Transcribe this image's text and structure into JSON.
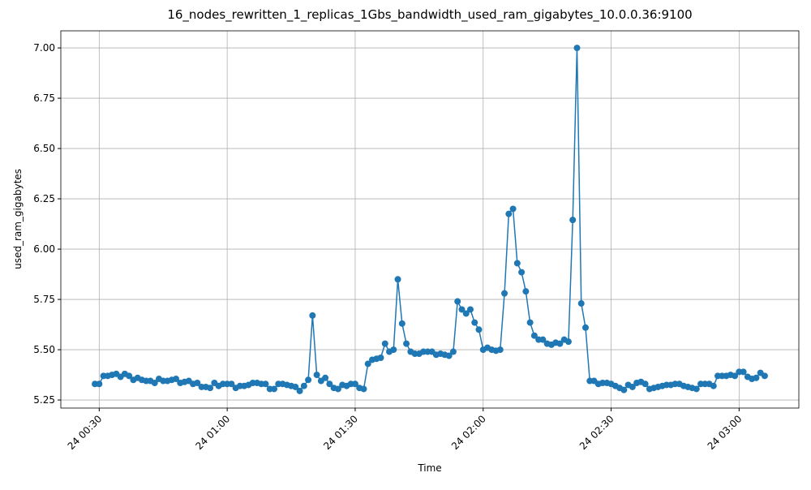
{
  "chart_data": {
    "type": "line",
    "title": "16_nodes_rewritten_1_replicas_1Gbs_bandwidth_used_ram_gigabytes_10.0.0.36:9100",
    "x_label": "Time",
    "y_label": "used_ram_gigabytes",
    "grid": true,
    "xlim": [
      "24 00:21",
      "24 03:14"
    ],
    "xticks": [
      "24 00:30",
      "24 01:00",
      "24 01:30",
      "24 02:00",
      "24 02:30",
      "24 03:00"
    ],
    "ylim": [
      5.21,
      7.085
    ],
    "yticks": [
      {
        "value": 5.25,
        "label": "5.25"
      },
      {
        "value": 5.5,
        "label": "5.50"
      },
      {
        "value": 5.75,
        "label": "5.75"
      },
      {
        "value": 6,
        "label": "6.00"
      },
      {
        "value": 6.25,
        "label": "6.25"
      },
      {
        "value": 6.5,
        "label": "6.50"
      },
      {
        "value": 6.75,
        "label": "6.75"
      },
      {
        "value": 7,
        "label": "7.00"
      }
    ],
    "x": [
      "24 00:29",
      "24 00:30",
      "24 00:31",
      "24 00:32",
      "24 00:33",
      "24 00:34",
      "24 00:35",
      "24 00:36",
      "24 00:37",
      "24 00:38",
      "24 00:39",
      "24 00:40",
      "24 00:41",
      "24 00:42",
      "24 00:43",
      "24 00:44",
      "24 00:45",
      "24 00:46",
      "24 00:47",
      "24 00:48",
      "24 00:49",
      "24 00:50",
      "24 00:51",
      "24 00:52",
      "24 00:53",
      "24 00:54",
      "24 00:55",
      "24 00:56",
      "24 00:57",
      "24 00:58",
      "24 00:59",
      "24 01:00",
      "24 01:01",
      "24 01:02",
      "24 01:03",
      "24 01:04",
      "24 01:05",
      "24 01:06",
      "24 01:07",
      "24 01:08",
      "24 01:09",
      "24 01:10",
      "24 01:11",
      "24 01:12",
      "24 01:13",
      "24 01:14",
      "24 01:15",
      "24 01:16",
      "24 01:17",
      "24 01:18",
      "24 01:19",
      "24 01:20",
      "24 01:21",
      "24 01:22",
      "24 01:23",
      "24 01:24",
      "24 01:25",
      "24 01:26",
      "24 01:27",
      "24 01:28",
      "24 01:29",
      "24 01:30",
      "24 01:31",
      "24 01:32",
      "24 01:33",
      "24 01:34",
      "24 01:35",
      "24 01:36",
      "24 01:37",
      "24 01:38",
      "24 01:39",
      "24 01:40",
      "24 01:41",
      "24 01:42",
      "24 01:43",
      "24 01:44",
      "24 01:45",
      "24 01:46",
      "24 01:47",
      "24 01:48",
      "24 01:49",
      "24 01:50",
      "24 01:51",
      "24 01:52",
      "24 01:53",
      "24 01:54",
      "24 01:55",
      "24 01:56",
      "24 01:57",
      "24 01:58",
      "24 01:59",
      "24 02:00",
      "24 02:01",
      "24 02:02",
      "24 02:03",
      "24 02:04",
      "24 02:05",
      "24 02:06",
      "24 02:07",
      "24 02:08",
      "24 02:09",
      "24 02:10",
      "24 02:11",
      "24 02:12",
      "24 02:13",
      "24 02:14",
      "24 02:15",
      "24 02:16",
      "24 02:17",
      "24 02:18",
      "24 02:19",
      "24 02:20",
      "24 02:21",
      "24 02:22",
      "24 02:23",
      "24 02:24",
      "24 02:25",
      "24 02:26",
      "24 02:27",
      "24 02:28",
      "24 02:29",
      "24 02:30",
      "24 02:31",
      "24 02:32",
      "24 02:33",
      "24 02:34",
      "24 02:35",
      "24 02:36",
      "24 02:37",
      "24 02:38",
      "24 02:39",
      "24 02:40",
      "24 02:41",
      "24 02:42",
      "24 02:43",
      "24 02:44",
      "24 02:45",
      "24 02:46",
      "24 02:47",
      "24 02:48",
      "24 02:49",
      "24 02:50",
      "24 02:51",
      "24 02:52",
      "24 02:53",
      "24 02:54",
      "24 02:55",
      "24 02:56",
      "24 02:57",
      "24 02:58",
      "24 02:59",
      "24 03:00",
      "24 03:01",
      "24 03:02",
      "24 03:03",
      "24 03:04",
      "24 03:05",
      "24 03:06"
    ],
    "series": [
      {
        "color": "#1f77b4",
        "values": [
          5.33,
          5.33,
          5.37,
          5.37,
          5.375,
          5.38,
          5.365,
          5.38,
          5.37,
          5.35,
          5.36,
          5.35,
          5.345,
          5.345,
          5.335,
          5.355,
          5.345,
          5.345,
          5.35,
          5.355,
          5.335,
          5.34,
          5.345,
          5.33,
          5.335,
          5.315,
          5.315,
          5.31,
          5.335,
          5.32,
          5.33,
          5.33,
          5.33,
          5.31,
          5.32,
          5.32,
          5.325,
          5.335,
          5.335,
          5.33,
          5.33,
          5.305,
          5.305,
          5.33,
          5.33,
          5.325,
          5.32,
          5.315,
          5.295,
          5.32,
          5.35,
          5.67,
          5.375,
          5.345,
          5.36,
          5.33,
          5.31,
          5.305,
          5.325,
          5.32,
          5.33,
          5.33,
          5.31,
          5.305,
          5.43,
          5.45,
          5.455,
          5.46,
          5.53,
          5.49,
          5.5,
          5.85,
          5.63,
          5.53,
          5.49,
          5.48,
          5.48,
          5.49,
          5.49,
          5.49,
          5.475,
          5.48,
          5.475,
          5.47,
          5.49,
          5.74,
          5.7,
          5.68,
          5.7,
          5.635,
          5.6,
          5.5,
          5.51,
          5.5,
          5.495,
          5.5,
          5.78,
          6.175,
          6.2,
          5.93,
          5.885,
          5.79,
          5.635,
          5.57,
          5.55,
          5.55,
          5.53,
          5.525,
          5.535,
          5.53,
          5.55,
          5.54,
          6.145,
          7.0,
          5.73,
          5.61,
          5.345,
          5.345,
          5.33,
          5.335,
          5.335,
          5.33,
          5.32,
          5.31,
          5.3,
          5.325,
          5.315,
          5.335,
          5.34,
          5.33,
          5.305,
          5.31,
          5.315,
          5.32,
          5.325,
          5.325,
          5.33,
          5.33,
          5.32,
          5.315,
          5.31,
          5.305,
          5.33,
          5.33,
          5.33,
          5.32,
          5.37,
          5.37,
          5.37,
          5.375,
          5.37,
          5.39,
          5.39,
          5.365,
          5.355,
          5.36,
          5.385,
          5.37
        ]
      }
    ]
  }
}
